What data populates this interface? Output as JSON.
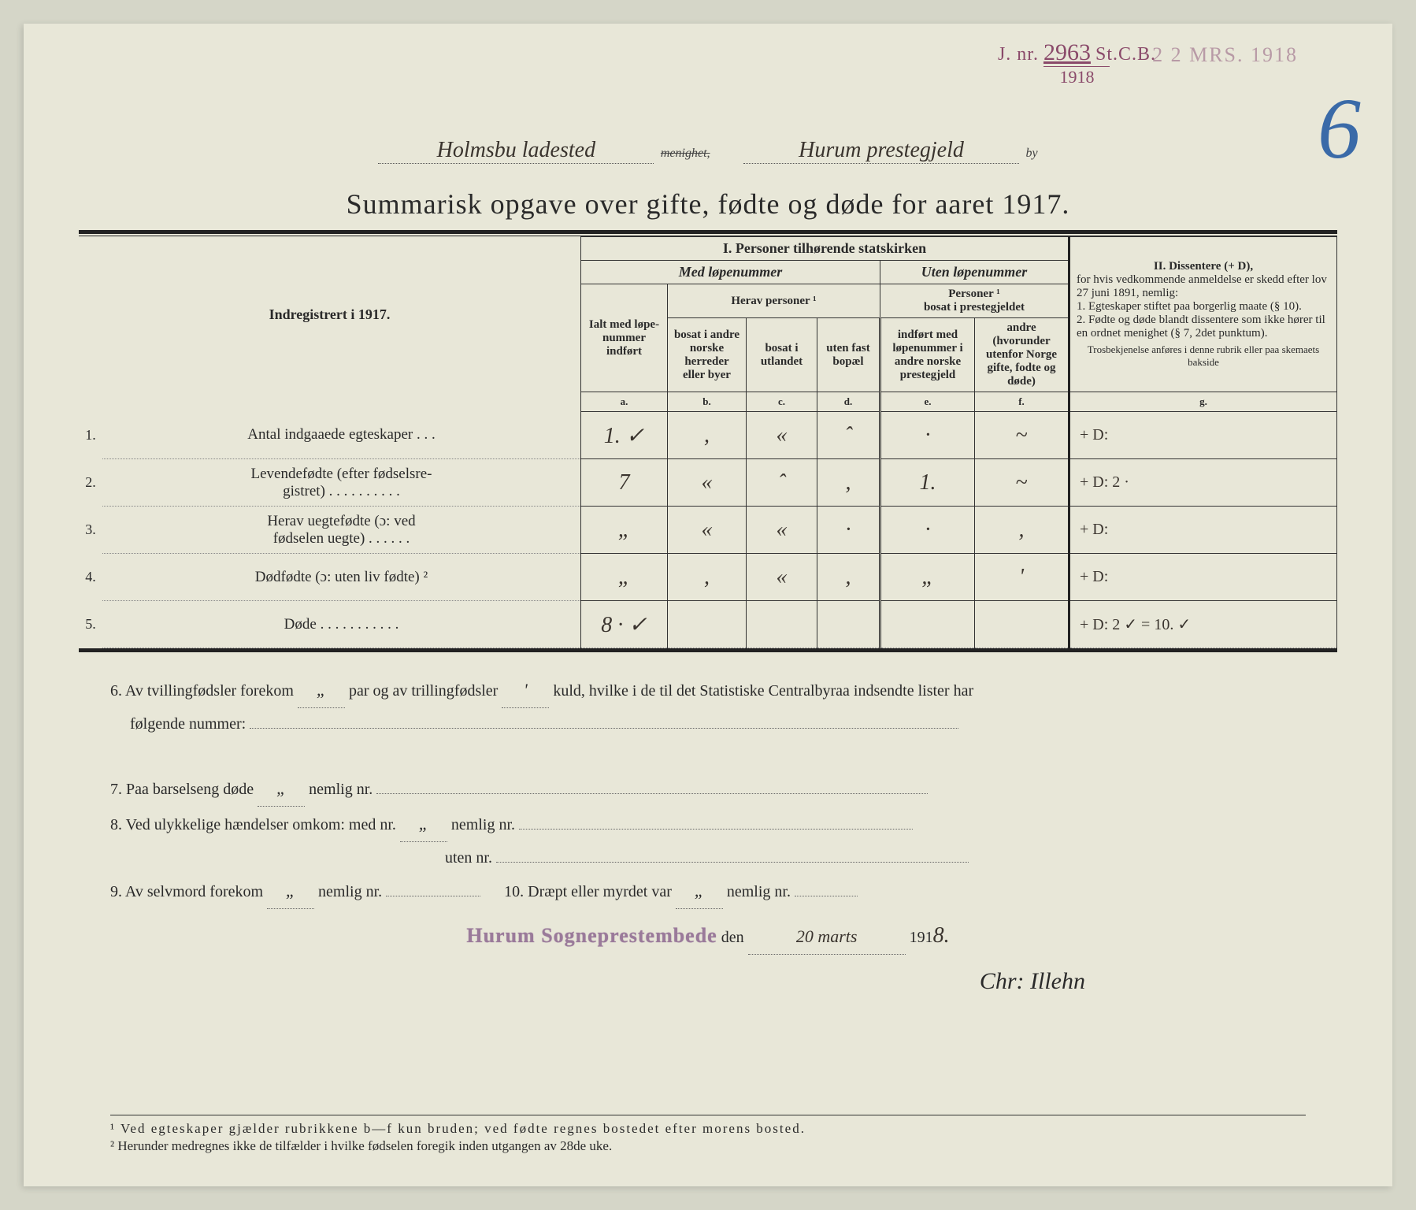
{
  "stamp": {
    "jnr_prefix": "J. nr.",
    "jnr_number": "2963",
    "jnr_suffix": "St.C.B.",
    "year": "1918",
    "date_stamp": "2 2 MRS. 1918"
  },
  "page_number": "6",
  "handwritten_header": {
    "menighet": "Holmsbu ladested",
    "menighet_label": "menighet,",
    "by": "Hurum prestegjeld",
    "by_label": "by"
  },
  "title": "Summarisk opgave over gifte, fødte og døde for aaret 1917.",
  "table": {
    "section1_title": "I.  Personer tilhørende statskirken",
    "med_lopenummer": "Med løpenummer",
    "uten_lopenummer": "Uten løpenummer",
    "herav_personer": "Herav personer ¹",
    "personer_bosat": "Personer ¹\nbosat i prestegjeldet",
    "indregistrert": "Indregistrert i 1917.",
    "col_a": "Ialt med løpe-nummer indført",
    "col_a_sub": "a.",
    "col_b": "bosat i andre norske herreder eller byer",
    "col_b_sub": "b.",
    "col_c": "bosat i utlandet",
    "col_c_sub": "c.",
    "col_d": "uten fast bopæl",
    "col_d_sub": "d.",
    "col_e": "indført med løpenummer i andre norske prestegjeld",
    "col_e_sub": "e.",
    "col_f": "andre (hvorunder utenfor Norge gifte, fodte og døde)",
    "col_f_sub": "f.",
    "section2_title": "II.  Dissentere (+ D),",
    "section2_body": "for hvis vedkommende anmeldelse er skedd efter lov 27 juni 1891, nemlig:\n1. Egteskaper stiftet paa borgerlig maate (§ 10).\n2. Fødte og døde blandt dissentere som ikke hører til en ordnet menighet (§ 7, 2det punktum).",
    "section2_note": "Trosbekjenelse anføres i denne rubrik eller paa skemaets bakside",
    "col_g_sub": "g.",
    "rows": [
      {
        "n": "1.",
        "label": "Antal indgaaede egteskaper  .  .  .",
        "a": "1. ✓",
        "b": ",",
        "c": "«",
        "d": "ˆ",
        "e": "·",
        "f": "~",
        "g": "+ D:"
      },
      {
        "n": "2.",
        "label": "Levendefødte (efter fødselsre-\ngistret) . . . . . . . . . .",
        "a": "7",
        "b": "«",
        "c": "ˆ",
        "d": ",",
        "e": "1.",
        "f": "~",
        "g": "+ D: 2 ·"
      },
      {
        "n": "3.",
        "label": "Herav uegtefødte (ɔ: ved\nfødselen uegte) . . . . . .",
        "a": "„",
        "b": "«",
        "c": "«",
        "d": "·",
        "e": "·",
        "f": ",",
        "g": "+ D:"
      },
      {
        "n": "4.",
        "label": "Dødfødte (ɔ: uten liv fødte) ²",
        "a": "„",
        "b": ",",
        "c": "«",
        "d": ",",
        "e": "„",
        "f": "'",
        "g": "+ D:"
      },
      {
        "n": "5.",
        "label": "Døde . . . . . . . . . . .",
        "a": "8 · ✓",
        "b": "",
        "c": "",
        "d": "",
        "e": "",
        "f": "",
        "g": "+ D: 2 ✓ = 10. ✓"
      }
    ]
  },
  "notes": {
    "line6a": "6.   Av tvillingfødsler forekom",
    "line6_v1": "„",
    "line6b": "par og av trillingfødsler",
    "line6_v2": "'",
    "line6c": "kuld, hvilke i de til det Statistiske Centralbyraa indsendte lister har",
    "line6d": "følgende nummer:",
    "line7a": "7.   Paa barselseng døde",
    "line7_v1": "„",
    "line7b": "nemlig nr.",
    "line8a": "8.   Ved ulykkelige hændelser omkom:  med nr.",
    "line8_v1": "„",
    "line8b": "nemlig nr.",
    "line8c": "uten nr.",
    "line9a": "9.   Av selvmord forekom",
    "line9_v1": "„",
    "line9b": "nemlig nr.",
    "line10a": "10.  Dræpt eller myrdet var",
    "line10_v1": "„",
    "line10b": "nemlig nr.",
    "sig_stamp": "Hurum Sogneprestembede",
    "den": "den",
    "date_hand": "20 marts",
    "year_prefix": "191",
    "year_hand": "8.",
    "signature": "Chr: Illehn"
  },
  "footnotes": {
    "f1": "¹ Ved egteskaper gjælder rubrikkene b—f kun bruden; ved fødte regnes bostedet efter morens bosted.",
    "f2": "² Herunder medregnes ikke de tilfælder i hvilke fødselen foregik inden utgangen av 28de uke."
  },
  "colors": {
    "paper": "#e8e7d8",
    "ink": "#2a2a2a",
    "stamp_purple": "#8a4a6a",
    "stamp_faded": "#b89aa6",
    "blue_pencil": "#3a6aa8",
    "handwriting": "#3a342e"
  }
}
